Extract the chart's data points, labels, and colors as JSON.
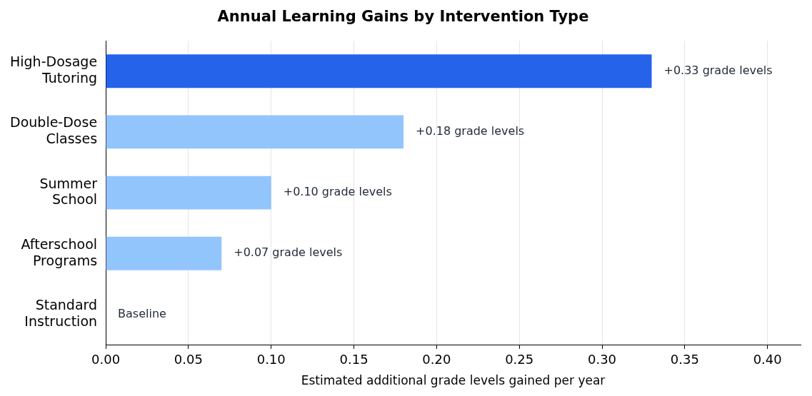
{
  "chart_data": {
    "type": "bar",
    "orientation": "horizontal",
    "title": "Annual Learning Gains by Intervention Type",
    "xlabel": "Estimated additional grade levels gained per year",
    "categories": [
      "High-Dosage\nTutoring",
      "Double-Dose\nClasses",
      "Summer\nSchool",
      "Afterschool\nPrograms",
      "Standard\nInstruction"
    ],
    "values": [
      0.33,
      0.18,
      0.1,
      0.07,
      0
    ],
    "colors": [
      "#2563eb",
      "#93c5fd",
      "#93c5fd",
      "#93c5fd",
      "#93c5fd"
    ],
    "value_labels": [
      "+0.33 grade levels",
      "+0.18 grade levels",
      "+0.10 grade levels",
      "+0.07 grade levels",
      "Baseline"
    ],
    "xlim": [
      0,
      0.42
    ],
    "xticks": [
      {
        "value": 0,
        "label": "0.00"
      },
      {
        "value": 0.05,
        "label": "0.05"
      },
      {
        "value": 0.1,
        "label": "0.10"
      },
      {
        "value": 0.15,
        "label": "0.15"
      },
      {
        "value": 0.2,
        "label": "0.20"
      },
      {
        "value": 0.25,
        "label": "0.25"
      },
      {
        "value": 0.3,
        "label": "0.30"
      },
      {
        "value": 0.35,
        "label": "0.35"
      },
      {
        "value": 0.4,
        "label": "0.40"
      }
    ],
    "grid": "x",
    "legend": false
  }
}
